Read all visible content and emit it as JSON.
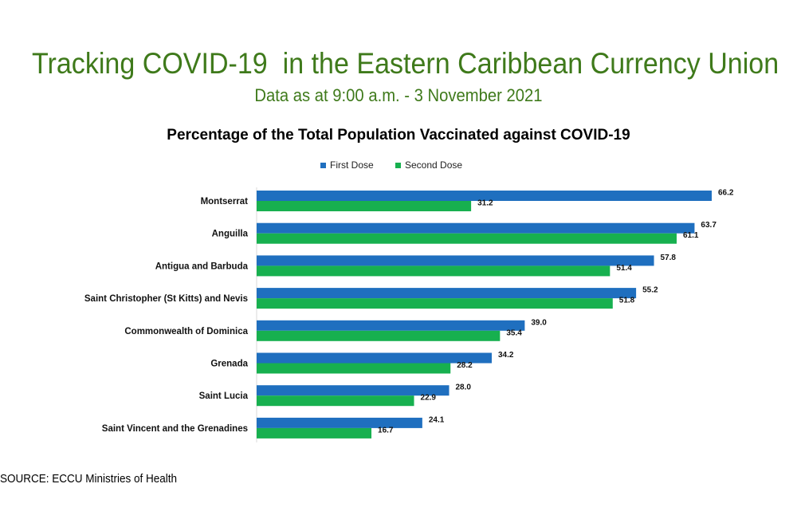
{
  "header": {
    "title": "Tracking COVID-19  in the Eastern Caribbean Currency Union",
    "subtitle": "Data as at 9:00 a.m. - 3 November 2021"
  },
  "footer": {
    "source": "SOURCE: ECCU Ministries of Health"
  },
  "colors": {
    "title_green": "#3f7a1b",
    "first_dose": "#1f6fbf",
    "second_dose": "#17b04f"
  },
  "chart_data": {
    "type": "bar",
    "orientation": "horizontal",
    "title": "Percentage of the Total Population Vaccinated against COVID-19",
    "xlabel": "",
    "ylabel": "",
    "xlim": [
      0,
      66.2
    ],
    "grid": false,
    "legend_position": "top",
    "categories": [
      "Montserrat",
      "Anguilla",
      "Antigua and Barbuda",
      "Saint Christopher (St Kitts) and Nevis",
      "Commonwealth of Dominica",
      "Grenada",
      "Saint Lucia",
      "Saint Vincent and the Grenadines"
    ],
    "series": [
      {
        "name": "First Dose",
        "color": "#1f6fbf",
        "values": [
          66.2,
          63.7,
          57.8,
          55.2,
          39.0,
          34.2,
          28.0,
          24.1
        ],
        "labels": [
          "66.2",
          "63.7",
          "57.8",
          "55.2",
          "39.0",
          "34.2",
          "28.0",
          "24.1"
        ]
      },
      {
        "name": "Second Dose",
        "color": "#17b04f",
        "values": [
          31.2,
          61.1,
          51.4,
          51.8,
          35.4,
          28.2,
          22.9,
          16.7
        ],
        "labels": [
          "31.2",
          "61.1",
          "51.4",
          "51.8",
          "35.4",
          "28.2",
          "22.9",
          "16.7"
        ]
      }
    ]
  }
}
